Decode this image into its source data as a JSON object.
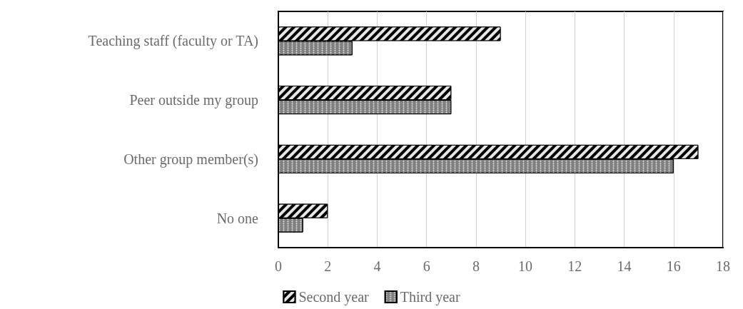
{
  "chart_data": {
    "type": "bar",
    "orientation": "horizontal",
    "categories": [
      "Teaching staff (faculty or TA)",
      "Peer outside my group",
      "Other group member(s)",
      "No one"
    ],
    "series": [
      {
        "name": "Second year",
        "color": "#000000",
        "values": [
          9,
          7,
          17,
          2
        ]
      },
      {
        "name": "Third year",
        "color": "#808080",
        "values": [
          3,
          7,
          16,
          1
        ]
      }
    ],
    "xlim": [
      0,
      18
    ],
    "xticks": [
      0,
      2,
      4,
      6,
      8,
      10,
      12,
      14,
      16,
      18
    ],
    "grid": "x",
    "legend": "bottom"
  }
}
